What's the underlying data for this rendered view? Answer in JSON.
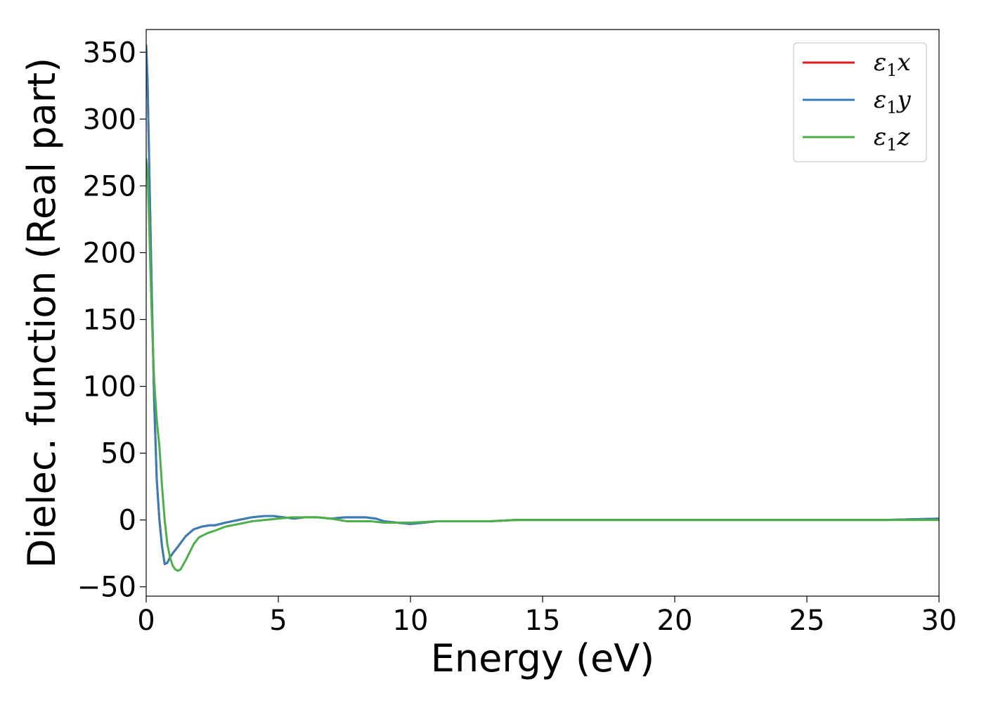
{
  "chart_data": {
    "type": "line",
    "title": "",
    "xlabel": "Energy (eV)",
    "ylabel": "Dielec. function (Real part)",
    "xlim": [
      0,
      30
    ],
    "ylim": [
      -57,
      367
    ],
    "xticks": [
      0,
      5,
      10,
      15,
      20,
      25,
      30
    ],
    "xtick_labels": [
      "0",
      "5",
      "10",
      "15",
      "20",
      "25",
      "30"
    ],
    "yticks": [
      -50,
      0,
      50,
      100,
      150,
      200,
      250,
      300,
      350
    ],
    "ytick_labels": [
      "−50",
      "0",
      "50",
      "100",
      "150",
      "200",
      "250",
      "300",
      "350"
    ],
    "grid": false,
    "legend_position": "top-right",
    "series": [
      {
        "name": "ε₁x",
        "legend_main": "ε",
        "legend_sub": "1",
        "legend_tail": "x",
        "color": "#e41a1c",
        "x": [
          0,
          0.05,
          0.1,
          0.2,
          0.3,
          0.4,
          0.5,
          0.6,
          0.7,
          0.8,
          0.9,
          1.0,
          1.2,
          1.5,
          1.8,
          2.1,
          2.4,
          2.6,
          3.0,
          3.5,
          4.0,
          4.5,
          4.8,
          5.2,
          5.6,
          6.0,
          6.5,
          7.0,
          7.5,
          8.0,
          8.3,
          8.7,
          9.0,
          9.5,
          10.0,
          10.5,
          11.0,
          12.0,
          13.0,
          14.0,
          15.0,
          16.0,
          17.0,
          18.0,
          19.0,
          20.0,
          22.0,
          24.0,
          26.0,
          28.0,
          30.0
        ],
        "y": [
          355,
          330,
          280,
          180,
          90,
          30,
          0,
          -20,
          -33,
          -32,
          -28,
          -25,
          -20,
          -12,
          -7,
          -5,
          -4,
          -4,
          -2,
          0,
          2,
          3,
          3,
          2,
          1,
          2,
          2,
          1,
          2,
          2,
          2,
          1,
          -1,
          -2,
          -3,
          -2,
          -1,
          -1,
          -1,
          0,
          0,
          0,
          0,
          0,
          0,
          0,
          0,
          0,
          0,
          0,
          1
        ]
      },
      {
        "name": "ε₁y",
        "legend_main": "ε",
        "legend_sub": "1",
        "legend_tail": "y",
        "color": "#377eb8",
        "x": [
          0,
          0.05,
          0.1,
          0.2,
          0.3,
          0.4,
          0.5,
          0.6,
          0.7,
          0.8,
          0.9,
          1.0,
          1.2,
          1.5,
          1.8,
          2.1,
          2.4,
          2.6,
          3.0,
          3.5,
          4.0,
          4.5,
          4.8,
          5.2,
          5.6,
          6.0,
          6.5,
          7.0,
          7.5,
          8.0,
          8.3,
          8.7,
          9.0,
          9.5,
          10.0,
          10.5,
          11.0,
          12.0,
          13.0,
          14.0,
          15.0,
          16.0,
          17.0,
          18.0,
          19.0,
          20.0,
          22.0,
          24.0,
          26.0,
          28.0,
          30.0
        ],
        "y": [
          355,
          330,
          280,
          180,
          90,
          30,
          0,
          -20,
          -33,
          -32,
          -28,
          -25,
          -20,
          -12,
          -7,
          -5,
          -4,
          -4,
          -2,
          0,
          2,
          3,
          3,
          2,
          1,
          2,
          2,
          1,
          2,
          2,
          2,
          1,
          -1,
          -2,
          -3,
          -2,
          -1,
          -1,
          -1,
          0,
          0,
          0,
          0,
          0,
          0,
          0,
          0,
          0,
          0,
          0,
          1
        ]
      },
      {
        "name": "ε₁z",
        "legend_main": "ε",
        "legend_sub": "1",
        "legend_tail": "z",
        "color": "#4daf4a",
        "x": [
          0,
          0.05,
          0.1,
          0.2,
          0.3,
          0.4,
          0.5,
          0.6,
          0.7,
          0.8,
          0.9,
          1.0,
          1.1,
          1.2,
          1.3,
          1.5,
          1.8,
          2.0,
          2.3,
          2.6,
          3.0,
          3.5,
          4.0,
          4.5,
          5.0,
          5.5,
          6.0,
          6.5,
          7.0,
          7.3,
          7.6,
          8.0,
          8.5,
          9.0,
          9.5,
          10.0,
          11.0,
          12.0,
          13.0,
          14.0,
          15.0,
          16.0,
          17.0,
          18.0,
          19.0,
          20.0,
          22.0,
          24.0,
          26.0,
          28.0,
          30.0
        ],
        "y": [
          270,
          260,
          230,
          160,
          105,
          75,
          55,
          25,
          0,
          -18,
          -28,
          -34,
          -37,
          -38,
          -37,
          -30,
          -18,
          -13,
          -10,
          -8,
          -5,
          -3,
          -1,
          0,
          1,
          2,
          2,
          2,
          1,
          0,
          -1,
          -1,
          -1,
          -2,
          -2,
          -2,
          -1,
          -1,
          -1,
          0,
          0,
          0,
          0,
          0,
          0,
          0,
          0,
          0,
          0,
          0,
          0
        ]
      }
    ]
  }
}
